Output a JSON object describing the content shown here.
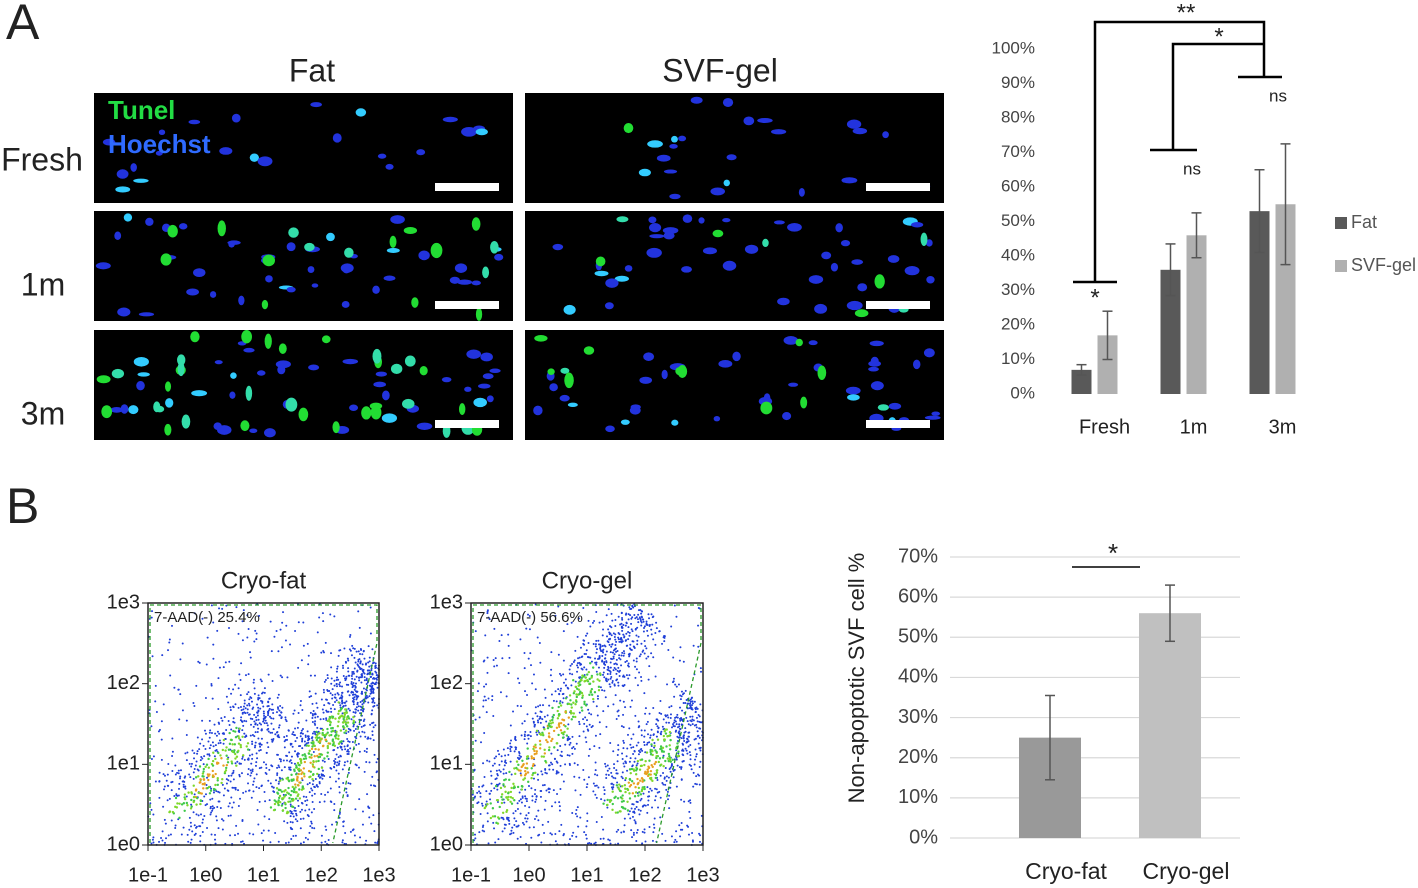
{
  "panel_labels": [
    "A",
    "B"
  ],
  "microscopy": {
    "columns": [
      "Fat",
      "SVF-gel"
    ],
    "rows": [
      "Fresh",
      "1m",
      "3m"
    ],
    "stains": [
      "Tunel",
      "Hoechst"
    ]
  },
  "flow_plots": [
    {
      "title": "Cryo-fat",
      "gate_label": "7-AAD(-) 25.4%"
    },
    {
      "title": "Cryo-gel",
      "gate_label": "7-AAD(-) 56.6%"
    }
  ],
  "flow_axis": {
    "x_tick_labels": [
      "1e-1",
      "1e0",
      "1e1",
      "1e2",
      "1e3"
    ],
    "y_tick_labels": [
      "1e3",
      "1e2",
      "1e1",
      "1e0"
    ]
  },
  "chart_data": [
    {
      "type": "bar",
      "categories": [
        "Fresh",
        "1m",
        "3m"
      ],
      "series": [
        {
          "name": "Fat",
          "color": "#595959",
          "values": [
            7,
            36,
            53
          ],
          "errors": [
            1.5,
            7.5,
            12
          ]
        },
        {
          "name": "SVF-gel",
          "color": "#b0b0b0",
          "values": [
            17,
            46,
            55
          ],
          "errors": [
            7,
            6.5,
            17.5
          ]
        }
      ],
      "ylim": [
        0,
        100
      ],
      "yticks": [
        {
          "value": 0,
          "label": "0%"
        },
        {
          "value": 10,
          "label": "10%"
        },
        {
          "value": 20,
          "label": "20%"
        },
        {
          "value": 30,
          "label": "30%"
        },
        {
          "value": 40,
          "label": "40%"
        },
        {
          "value": 50,
          "label": "50%"
        },
        {
          "value": 60,
          "label": "60%"
        },
        {
          "value": 70,
          "label": "70%"
        },
        {
          "value": 80,
          "label": "80%"
        },
        {
          "value": 90,
          "label": "90%"
        },
        {
          "value": 100,
          "label": "100%"
        }
      ],
      "grid": false,
      "legend": "right",
      "annotations": [
        "**",
        "*",
        "ns",
        "ns",
        "*"
      ]
    },
    {
      "type": "bar",
      "y_label": "Non-apoptotic SVF cell %",
      "categories": [
        "Cryo-fat",
        "Cryo-gel"
      ],
      "values": [
        25,
        56
      ],
      "errors": [
        10.5,
        7
      ],
      "colors": [
        "#999999",
        "#c0c0c0"
      ],
      "ylim": [
        0,
        70
      ],
      "yticks": [
        {
          "value": 0,
          "label": "0%"
        },
        {
          "value": 10,
          "label": "10%"
        },
        {
          "value": 20,
          "label": "20%"
        },
        {
          "value": 30,
          "label": "30%"
        },
        {
          "value": 40,
          "label": "40%"
        },
        {
          "value": 50,
          "label": "50%"
        },
        {
          "value": 60,
          "label": "60%"
        },
        {
          "value": 70,
          "label": "70%"
        }
      ],
      "grid": true,
      "annotations": [
        "*"
      ]
    }
  ]
}
